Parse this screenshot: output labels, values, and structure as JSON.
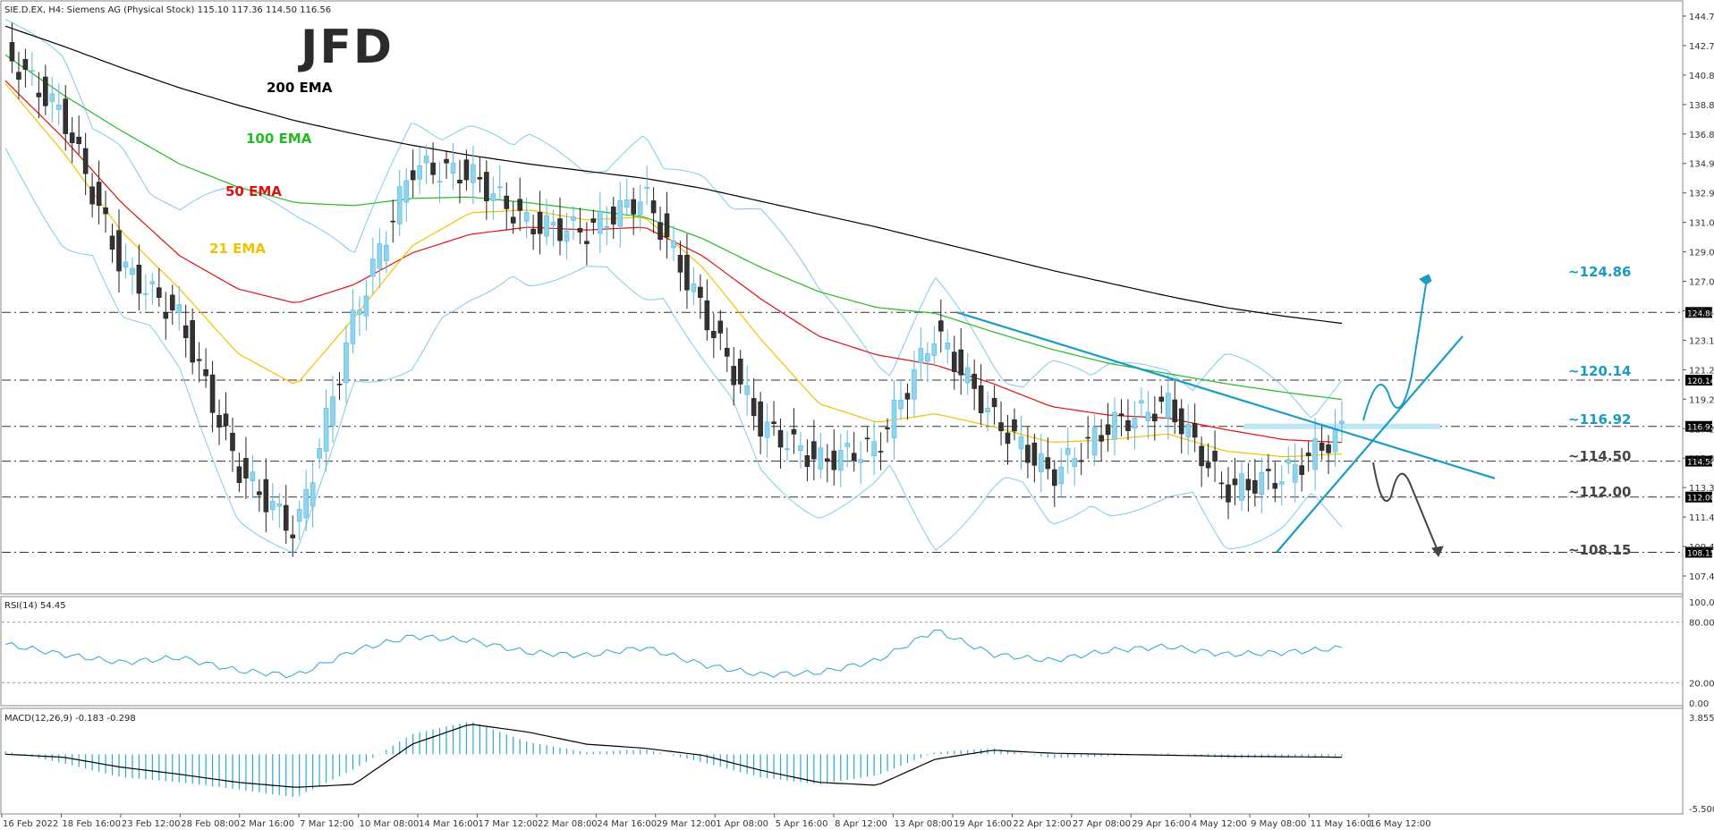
{
  "header": {
    "symbol_info": "SIE.D.EX, H4:  Siemens AG (Physical Stock)  115.10 117.36 114.50 116.56",
    "logo": "JFD"
  },
  "ema_labels": [
    {
      "text": "200 EMA",
      "color": "#000000"
    },
    {
      "text": "100 EMA",
      "color": "#22bb22"
    },
    {
      "text": "50 EMA",
      "color": "#dd1111"
    },
    {
      "text": "21 EMA",
      "color": "#f2c200"
    }
  ],
  "levels": [
    {
      "label": "~124.86",
      "tag": "124.86",
      "value": 124.86,
      "highlight": false
    },
    {
      "label": "~120.14",
      "tag": "120.14",
      "value": 120.14,
      "highlight": false
    },
    {
      "label": "~116.92",
      "tag": "116.92",
      "value": 116.92,
      "highlight": true
    },
    {
      "label": "~114.50",
      "tag": "114.50",
      "value": 114.5,
      "highlight": false
    },
    {
      "label": "~112.00",
      "tag": "112.00",
      "value": 112.0,
      "highlight": false
    },
    {
      "label": "~108.15",
      "tag": "108.15",
      "value": 108.15,
      "highlight": false
    }
  ],
  "colors": {
    "level_label": "#1a9bc4",
    "level_label_dark": "#444444",
    "trendline": "#1a9bc4",
    "bollinger": "#7ecbea",
    "rsi_line": "#2aa7d3",
    "macd_hist": "#2aa7d3",
    "macd_signal": "#000000",
    "bull_candle": "#8fd4ef",
    "bear_candle": "#333333",
    "up_arrow": "#1a9bc4",
    "down_arrow": "#444444"
  },
  "price_axis": {
    "ticks": [
      "144.73",
      "142.77",
      "140.81",
      "138.85",
      "136.89",
      "134.93",
      "132.97",
      "131.01",
      "129.05",
      "127.09",
      "125.13",
      "123.17",
      "121.21",
      "119.25",
      "117.29",
      "115.33",
      "113.37",
      "111.41",
      "109.45",
      "107.49"
    ]
  },
  "x_axis": {
    "ticks": [
      "16 Feb 2022",
      "18 Feb 16:00",
      "23 Feb 12:00",
      "28 Feb 08:00",
      "2 Mar 16:00",
      "7 Mar 12:00",
      "10 Mar 08:00",
      "14 Mar 16:00",
      "17 Mar 12:00",
      "22 Mar 08:00",
      "24 Mar 16:00",
      "29 Mar 12:00",
      "1 Apr 08:00",
      "5 Apr 16:00",
      "8 Apr 12:00",
      "13 Apr 08:00",
      "19 Apr 16:00",
      "22 Apr 12:00",
      "27 Apr 08:00",
      "29 Apr 16:00",
      "4 May 12:00",
      "9 May 08:00",
      "11 May 16:00",
      "16 May 12:00"
    ]
  },
  "rsi": {
    "label": "RSI(14) 54.45",
    "ticks": [
      "100.00",
      "80.00",
      "20.00",
      "0.00"
    ],
    "levels": [
      80,
      20
    ]
  },
  "macd": {
    "label": "MACD(12,26,9) -0.183 -0.298",
    "ticks": [
      "3.855",
      "-5.500"
    ]
  },
  "chart_data": {
    "type": "line",
    "x": [
      "16 Feb 2022",
      "18 Feb 16:00",
      "23 Feb 12:00",
      "28 Feb 08:00",
      "2 Mar 16:00",
      "7 Mar 12:00",
      "10 Mar 08:00",
      "14 Mar 16:00",
      "17 Mar 12:00",
      "22 Mar 08:00",
      "24 Mar 16:00",
      "29 Mar 12:00",
      "1 Apr 08:00",
      "5 Apr 16:00",
      "8 Apr 12:00",
      "13 Apr 08:00",
      "19 Apr 16:00",
      "22 Apr 12:00",
      "27 Apr 08:00",
      "29 Apr 16:00",
      "4 May 12:00",
      "9 May 08:00",
      "11 May 16:00",
      "16 May 12:00"
    ],
    "series": [
      {
        "name": "Price",
        "values": [
          143.0,
          138.5,
          128.0,
          124.5,
          114.0,
          109.5,
          124.5,
          135.0,
          134.5,
          131.0,
          130.5,
          133.0,
          125.0,
          117.0,
          114.5,
          115.5,
          123.5,
          117.5,
          113.5,
          117.0,
          118.5,
          112.5,
          113.5,
          116.6
        ]
      },
      {
        "name": "200 EMA",
        "values": [
          144.8,
          143.4,
          141.9,
          140.5,
          139.3,
          138.2,
          137.3,
          136.5,
          135.8,
          135.2,
          134.7,
          134.2,
          133.5,
          132.6,
          131.7,
          130.8,
          129.8,
          128.8,
          127.8,
          126.9,
          126.0,
          125.2,
          124.6,
          124.1
        ]
      },
      {
        "name": "100 EMA",
        "values": [
          142.8,
          140.0,
          137.5,
          135.2,
          133.6,
          132.5,
          132.3,
          132.8,
          132.9,
          132.5,
          132.0,
          131.5,
          130.0,
          128.0,
          126.3,
          125.2,
          124.8,
          123.5,
          122.3,
          121.3,
          120.6,
          119.9,
          119.3,
          118.8
        ]
      },
      {
        "name": "50 EMA",
        "values": [
          141.0,
          137.0,
          132.5,
          128.8,
          126.5,
          125.5,
          126.8,
          129.0,
          130.3,
          130.8,
          130.6,
          130.8,
          128.8,
          125.8,
          123.2,
          121.9,
          121.2,
          119.9,
          118.3,
          117.7,
          117.5,
          116.7,
          116.0,
          115.8
        ]
      },
      {
        "name": "21 EMA",
        "values": [
          140.8,
          136.0,
          130.5,
          126.5,
          122.0,
          119.8,
          124.5,
          129.5,
          131.8,
          132.0,
          131.3,
          131.5,
          128.0,
          123.0,
          118.5,
          117.2,
          117.8,
          116.9,
          115.8,
          116.0,
          116.4,
          115.2,
          114.8,
          115.0
        ]
      }
    ],
    "ylim": [
      106.5,
      145.5
    ],
    "rsi_values": [
      58,
      48,
      40,
      45,
      32,
      27,
      52,
      66,
      62,
      50,
      47,
      55,
      38,
      28,
      30,
      42,
      72,
      48,
      42,
      52,
      56,
      48,
      50,
      54.45
    ],
    "macd_values": [
      0.3,
      -0.9,
      -2.3,
      -2.8,
      -3.5,
      -4.3,
      -1.5,
      2.0,
      3.3,
      1.2,
      0.2,
      0.5,
      -0.8,
      -2.3,
      -3.0,
      -2.1,
      0.2,
      0.6,
      -0.4,
      -0.2,
      0.1,
      -0.4,
      -0.3,
      -0.18
    ],
    "macd_signal_values": [
      0.0,
      -0.3,
      -1.3,
      -2.0,
      -2.8,
      -3.3,
      -3.0,
      1.0,
      3.0,
      2.2,
      1.0,
      0.6,
      -0.1,
      -1.6,
      -2.8,
      -3.1,
      -0.5,
      0.4,
      0.1,
      0.0,
      -0.1,
      -0.2,
      -0.25,
      -0.3
    ],
    "macd_ylim": [
      -5.5,
      3.855
    ],
    "grid": false,
    "legend": "none"
  }
}
